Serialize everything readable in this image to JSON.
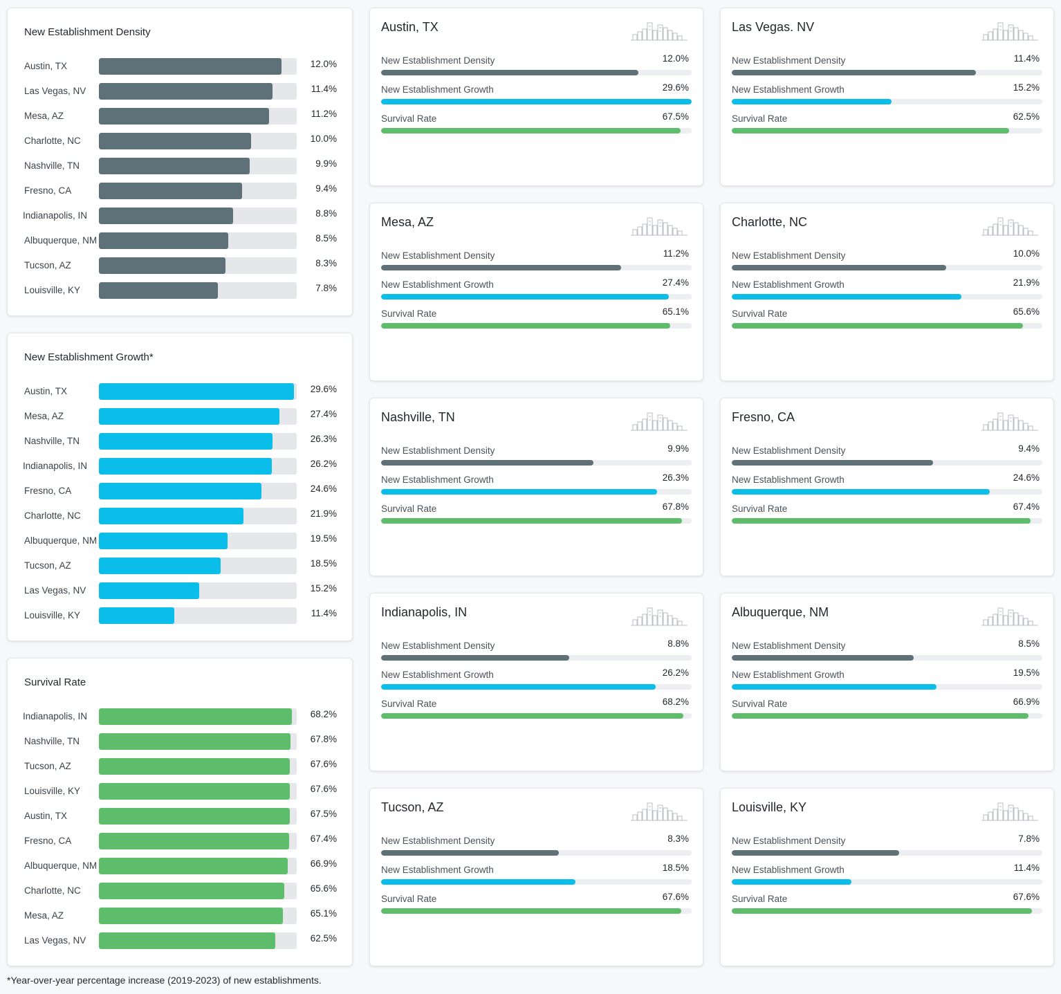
{
  "colors": {
    "density": "#5f7178",
    "growth": "#0bbde9",
    "survival": "#5ebd6a",
    "track": "#e6e7eb"
  },
  "chart_data": [
    {
      "type": "bar",
      "title": "New Establishment Density",
      "categories": [
        "Austin, TX",
        "Las Vegas, NV",
        "Mesa, AZ",
        "Charlotte, NC",
        "Nashville, TN",
        "Fresno, CA",
        "Indianapolis, IN",
        "Albuquerque, NM",
        "Tucson, AZ",
        "Louisville, KY"
      ],
      "values": [
        12.0,
        11.4,
        11.2,
        10.0,
        9.9,
        9.4,
        8.8,
        8.5,
        8.3,
        7.8
      ],
      "value_labels": [
        "12.0%",
        "11.4%",
        "11.2%",
        "10.0%",
        "9.9%",
        "9.4%",
        "8.8%",
        "8.5%",
        "8.3%",
        "7.8%"
      ],
      "ylim": [
        0,
        13
      ]
    },
    {
      "type": "bar",
      "title": "New Establishment Growth*",
      "categories": [
        "Austin, TX",
        "Mesa, AZ",
        "Nashville, TN",
        "Indianapolis, IN",
        "Fresno, CA",
        "Charlotte, NC",
        "Albuquerque, NM",
        "Tucson, AZ",
        "Las Vegas, NV",
        "Louisville, KY"
      ],
      "values": [
        29.6,
        27.4,
        26.3,
        26.2,
        24.6,
        21.9,
        19.5,
        18.5,
        15.2,
        11.4
      ],
      "value_labels": [
        "29.6%",
        "27.4%",
        "26.3%",
        "26.2%",
        "24.6%",
        "21.9%",
        "19.5%",
        "18.5%",
        "15.2%",
        "11.4%"
      ],
      "ylim": [
        0,
        30
      ]
    },
    {
      "type": "bar",
      "title": "Survival Rate",
      "categories": [
        "Indianapolis, IN",
        "Nashville, TN",
        "Tucson, AZ",
        "Louisville, KY",
        "Austin, TX",
        "Fresno, CA",
        "Albuquerque, NM",
        "Charlotte, NC",
        "Mesa, AZ",
        "Las Vegas, NV"
      ],
      "values": [
        68.2,
        67.8,
        67.6,
        67.6,
        67.5,
        67.4,
        66.9,
        65.6,
        65.1,
        62.5
      ],
      "value_labels": [
        "68.2%",
        "67.8%",
        "67.6%",
        "67.6%",
        "67.5%",
        "67.4%",
        "66.9%",
        "65.6%",
        "65.1%",
        "62.5%"
      ],
      "ylim": [
        0,
        70
      ]
    }
  ],
  "cities": [
    {
      "name": "Austin, TX",
      "metrics": [
        {
          "label": "New Establishment Density",
          "value": 12.0,
          "text": "12.0%"
        },
        {
          "label": "New Establishment Growth",
          "value": 29.6,
          "text": "29.6%"
        },
        {
          "label": "Survival Rate",
          "value": 67.5,
          "text": "67.5%"
        }
      ]
    },
    {
      "name": "Las Vegas. NV",
      "metrics": [
        {
          "label": "New Establishment Density",
          "value": 11.4,
          "text": "11.4%"
        },
        {
          "label": "New Establishment Growth",
          "value": 15.2,
          "text": "15.2%"
        },
        {
          "label": "Survival Rate",
          "value": 62.5,
          "text": "62.5%"
        }
      ]
    },
    {
      "name": "Mesa, AZ",
      "metrics": [
        {
          "label": "New Establishment Density",
          "value": 11.2,
          "text": "11.2%"
        },
        {
          "label": "New Establishment Growth",
          "value": 27.4,
          "text": "27.4%"
        },
        {
          "label": "Survival Rate",
          "value": 65.1,
          "text": "65.1%"
        }
      ]
    },
    {
      "name": "Charlotte, NC",
      "metrics": [
        {
          "label": "New Establishment Density",
          "value": 10.0,
          "text": "10.0%"
        },
        {
          "label": "New Establishment Growth",
          "value": 21.9,
          "text": "21.9%"
        },
        {
          "label": "Survival Rate",
          "value": 65.6,
          "text": "65.6%"
        }
      ]
    },
    {
      "name": "Nashville, TN",
      "metrics": [
        {
          "label": "New Establishment Density",
          "value": 9.9,
          "text": "9.9%"
        },
        {
          "label": "New Establishment Growth",
          "value": 26.3,
          "text": "26.3%"
        },
        {
          "label": "Survival Rate",
          "value": 67.8,
          "text": "67.8%"
        }
      ]
    },
    {
      "name": "Fresno, CA",
      "metrics": [
        {
          "label": "New Establishment Density",
          "value": 9.4,
          "text": "9.4%"
        },
        {
          "label": "New Establishment Growth",
          "value": 24.6,
          "text": "24.6%"
        },
        {
          "label": "Survival Rate",
          "value": 67.4,
          "text": "67.4%"
        }
      ]
    },
    {
      "name": "Indianapolis, IN",
      "metrics": [
        {
          "label": "New Establishment Density",
          "value": 8.8,
          "text": "8.8%"
        },
        {
          "label": "New Establishment Growth",
          "value": 26.2,
          "text": "26.2%"
        },
        {
          "label": "Survival Rate",
          "value": 68.2,
          "text": "68.2%"
        }
      ]
    },
    {
      "name": "Albuquerque, NM",
      "metrics": [
        {
          "label": "New Establishment Density",
          "value": 8.5,
          "text": "8.5%"
        },
        {
          "label": "New Establishment Growth",
          "value": 19.5,
          "text": "19.5%"
        },
        {
          "label": "Survival Rate",
          "value": 66.9,
          "text": "66.9%"
        }
      ]
    },
    {
      "name": "Tucson, AZ",
      "metrics": [
        {
          "label": "New Establishment Density",
          "value": 8.3,
          "text": "8.3%"
        },
        {
          "label": "New Establishment Growth",
          "value": 18.5,
          "text": "18.5%"
        },
        {
          "label": "Survival Rate",
          "value": 67.6,
          "text": "67.6%"
        }
      ]
    },
    {
      "name": "Louisville, KY",
      "metrics": [
        {
          "label": "New Establishment Density",
          "value": 7.8,
          "text": "7.8%"
        },
        {
          "label": "New Establishment Growth",
          "value": 11.4,
          "text": "11.4%"
        },
        {
          "label": "Survival Rate",
          "value": 67.6,
          "text": "67.6%"
        }
      ]
    }
  ],
  "city_metric_scales": [
    14.5,
    29.6,
    70
  ],
  "footnote": "*Year-over-year percentage increase (2019-2023) of new establishments."
}
